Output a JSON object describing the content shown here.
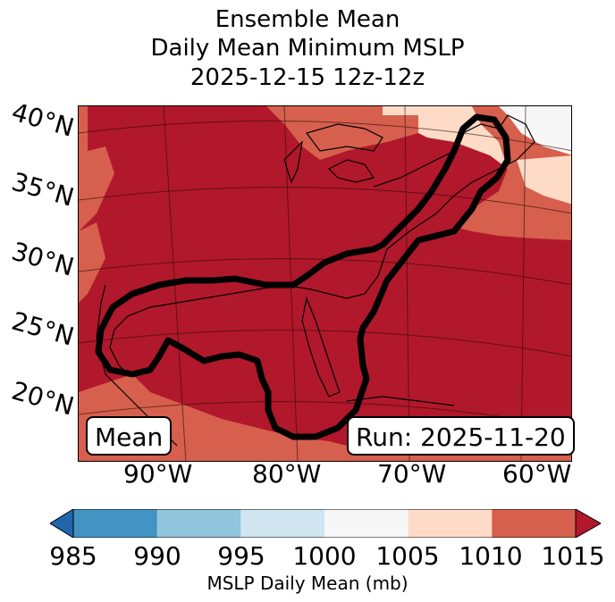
{
  "title": {
    "line1": "Ensemble Mean",
    "line2": "Daily Mean Minimum MSLP",
    "line3": "2025-12-15 12z-12z"
  },
  "map": {
    "lat_labels": [
      "40°N",
      "35°N",
      "30°N",
      "25°N",
      "20°N"
    ],
    "lon_labels": [
      "90°W",
      "80°W",
      "70°W",
      "60°W"
    ],
    "mean_box": "Mean",
    "run_box": "Run: 2025-11-20"
  },
  "colorbar": {
    "ticks": [
      "985",
      "990",
      "995",
      "1000",
      "1005",
      "1010",
      "1015"
    ],
    "label": "MSLP Daily Mean (mb)",
    "colors": [
      "#2166ac",
      "#4393c3",
      "#92c5de",
      "#d1e5f0",
      "#f7f7f7",
      "#fddbc7",
      "#d6604d",
      "#b2182b"
    ]
  }
}
